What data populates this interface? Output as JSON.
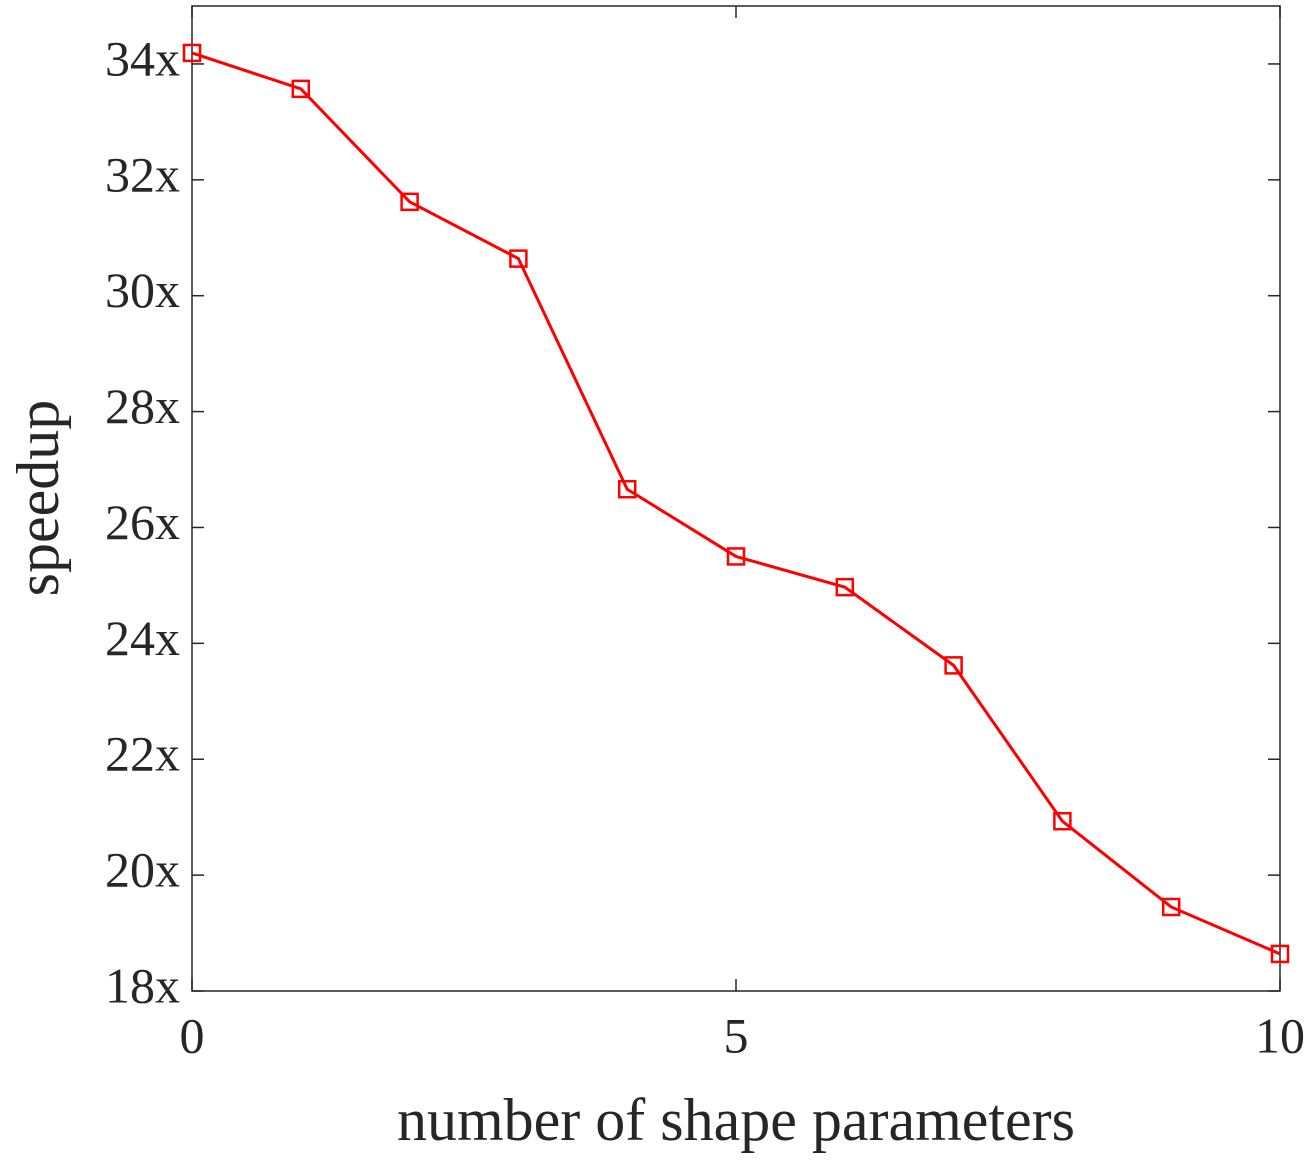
{
  "chart_data": {
    "type": "line",
    "x_label": "number of shape parameters",
    "y_label": "speedup",
    "x": [
      0,
      1,
      2,
      3,
      4,
      5,
      6,
      7,
      8,
      9,
      10
    ],
    "series": [
      {
        "color": "#ff0000",
        "marker": "square",
        "values": [
          34.19,
          33.57,
          31.62,
          30.64,
          26.66,
          25.5,
          24.97,
          23.62,
          20.93,
          19.45,
          18.64
        ]
      }
    ],
    "xlim": [
      0,
      10
    ],
    "xticks": [
      0,
      5,
      10
    ],
    "ylim": [
      18,
      35
    ],
    "yticks": [
      {
        "value": 18,
        "label": "18x"
      },
      {
        "value": 20,
        "label": "20x"
      },
      {
        "value": 22,
        "label": "22x"
      },
      {
        "value": 24,
        "label": "24x"
      },
      {
        "value": 26,
        "label": "26x"
      },
      {
        "value": 28,
        "label": "28x"
      },
      {
        "value": 30,
        "label": "30x"
      },
      {
        "value": 32,
        "label": "32x"
      },
      {
        "value": 34,
        "label": "34x"
      }
    ],
    "grid": false
  }
}
